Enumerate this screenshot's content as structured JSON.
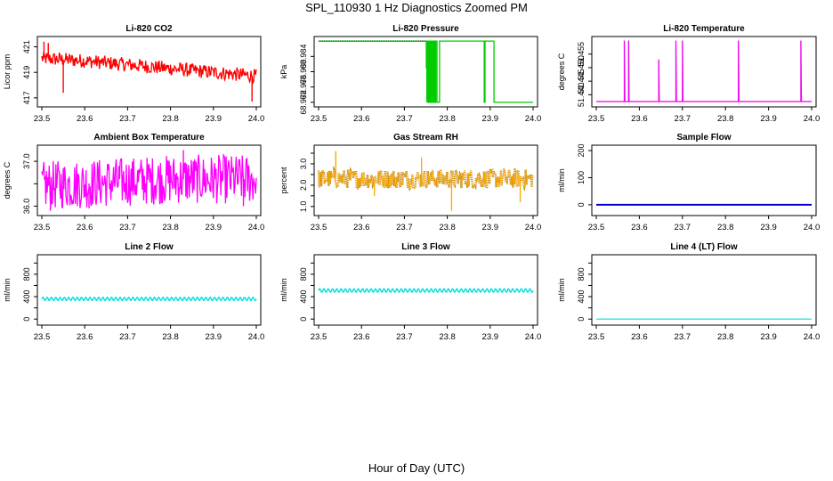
{
  "figure": {
    "title": "SPL_110930  1 Hz Diagnostics Zoomed PM",
    "xlabel": "Hour of Day (UTC)"
  },
  "chart_data": [
    {
      "type": "line",
      "title": "Li-820 CO2",
      "ylabel": "Licor ppm",
      "color": "#ff0000",
      "xlim": [
        23.5,
        24.0
      ],
      "ylim": [
        416.5,
        421.6
      ],
      "xticks": [
        23.5,
        23.6,
        23.7,
        23.8,
        23.9,
        24.0
      ],
      "xtick_labels": [
        "23.5",
        "23.6",
        "23.7",
        "23.8",
        "23.9",
        "24.0"
      ],
      "yticks": [
        417,
        419,
        421
      ],
      "ytick_labels": [
        "417",
        "419",
        "421"
      ],
      "series": [
        {
          "name": "CO2",
          "kind": "noisy",
          "x": [
            23.5,
            23.6,
            23.7,
            23.8,
            23.9,
            24.0
          ],
          "center": [
            420.1,
            419.9,
            419.6,
            419.3,
            419.0,
            418.7
          ],
          "amplitude": 0.55,
          "spikes": [
            [
              23.505,
              421.4
            ],
            [
              23.515,
              421.3
            ],
            [
              23.55,
              417.4
            ],
            [
              23.99,
              416.7
            ]
          ]
        }
      ]
    },
    {
      "type": "line",
      "title": "Li-820 Pressure",
      "ylabel": "kPa",
      "color": "#00cc00",
      "xlim": [
        23.5,
        24.0
      ],
      "ylim": [
        68.9715,
        68.9885
      ],
      "xticks": [
        23.5,
        23.6,
        23.7,
        23.8,
        23.9,
        24.0
      ],
      "xtick_labels": [
        "23.5",
        "23.6",
        "23.7",
        "23.8",
        "23.9",
        "24.0"
      ],
      "yticks": [
        68.972,
        68.976,
        68.98,
        68.984
      ],
      "ytick_labels": [
        "68.972",
        "68.976",
        "68.980",
        "68.984"
      ],
      "series": [
        {
          "name": "Pressure",
          "kind": "step",
          "high": 68.988,
          "low": 68.972,
          "x": [
            23.5,
            23.75,
            23.751,
            23.752,
            23.755,
            23.757,
            23.759,
            23.761,
            23.763,
            23.765,
            23.767,
            23.769,
            23.771,
            23.773,
            23.776,
            23.78,
            23.782,
            23.886,
            23.888,
            23.909,
            23.911,
            24.0
          ],
          "y": [
            68.988,
            68.988,
            68.981,
            68.988,
            68.972,
            68.988,
            68.972,
            68.988,
            68.972,
            68.988,
            68.972,
            68.988,
            68.972,
            68.988,
            68.972,
            68.972,
            68.988,
            68.972,
            68.988,
            68.972,
            68.972,
            68.972
          ]
        }
      ]
    },
    {
      "type": "line",
      "title": "Li-820 Temperature",
      "ylabel": "degrees C",
      "color": "#ee00ee",
      "xlim": [
        23.5,
        24.0
      ],
      "ylim": [
        51.4365,
        51.4605
      ],
      "xticks": [
        23.5,
        23.6,
        23.7,
        23.8,
        23.9,
        24.0
      ],
      "xtick_labels": [
        "23.5",
        "23.6",
        "23.7",
        "23.8",
        "23.9",
        "24.0"
      ],
      "yticks": [
        51.44,
        51.445,
        51.45,
        51.455
      ],
      "ytick_labels": [
        "51.440",
        "51.445",
        "51.450",
        "51.455"
      ],
      "series": [
        {
          "name": "Temperature",
          "kind": "spikes",
          "base": 51.4375,
          "x": [
            23.565,
            23.575,
            23.645,
            23.685,
            23.7,
            23.83,
            23.975
          ],
          "y": [
            51.46,
            51.46,
            51.453,
            51.46,
            51.46,
            51.46,
            51.46
          ]
        }
      ]
    },
    {
      "type": "line",
      "title": "Ambient Box Temperature",
      "ylabel": "degrees C",
      "color": "#ff00ff",
      "xlim": [
        23.5,
        24.0
      ],
      "ylim": [
        35.85,
        37.3
      ],
      "xticks": [
        23.5,
        23.6,
        23.7,
        23.8,
        23.9,
        24.0
      ],
      "xtick_labels": [
        "23.5",
        "23.6",
        "23.7",
        "23.8",
        "23.9",
        "24.0"
      ],
      "yticks": [
        36.0,
        36.5,
        37.0
      ],
      "ytick_labels": [
        "36.0",
        "",
        "37.0"
      ],
      "series": [
        {
          "name": "Box temp",
          "kind": "noisy",
          "x": [
            23.5,
            23.6,
            23.7,
            23.8,
            23.9,
            24.0
          ],
          "center": [
            36.45,
            36.5,
            36.55,
            36.6,
            36.6,
            36.6
          ],
          "amplitude": 0.55,
          "spikes": [
            [
              23.52,
              35.9
            ],
            [
              23.61,
              35.95
            ],
            [
              23.83,
              37.25
            ],
            [
              23.97,
              36.0
            ]
          ]
        }
      ]
    },
    {
      "type": "scatter",
      "title": "Gas Stream RH",
      "ylabel": "percent",
      "color": "#ffaa00",
      "secondary_color": "#996600",
      "xlim": [
        23.5,
        24.0
      ],
      "ylim": [
        0.7,
        3.75
      ],
      "xticks": [
        23.5,
        23.6,
        23.7,
        23.8,
        23.9,
        24.0
      ],
      "xtick_labels": [
        "23.5",
        "23.6",
        "23.7",
        "23.8",
        "23.9",
        "24.0"
      ],
      "yticks": [
        1.0,
        1.5,
        2.0,
        2.5,
        3.0,
        3.5
      ],
      "ytick_labels": [
        "1.0",
        "",
        "2.0",
        "",
        "3.0",
        ""
      ],
      "series": [
        {
          "name": "RH",
          "kind": "noisy",
          "x": [
            23.5,
            23.6,
            23.7,
            23.8,
            23.9,
            24.0
          ],
          "center": [
            2.3,
            2.3,
            2.3,
            2.3,
            2.3,
            2.3
          ],
          "amplitude": 0.45,
          "spikes": [
            [
              23.54,
              3.6
            ],
            [
              23.81,
              0.8
            ],
            [
              23.97,
              1.2
            ],
            [
              23.74,
              3.3
            ],
            [
              23.63,
              1.5
            ]
          ]
        }
      ]
    },
    {
      "type": "line",
      "title": "Sample Flow",
      "ylabel": "ml/min",
      "color": "#0000cc",
      "xlim": [
        23.5,
        24.0
      ],
      "ylim": [
        -30,
        210
      ],
      "xticks": [
        23.5,
        23.6,
        23.7,
        23.8,
        23.9,
        24.0
      ],
      "xtick_labels": [
        "23.5",
        "23.6",
        "23.7",
        "23.8",
        "23.9",
        "24.0"
      ],
      "yticks": [
        0,
        100,
        200
      ],
      "ytick_labels": [
        "0",
        "100",
        "200"
      ],
      "series": [
        {
          "name": "Sample flow",
          "kind": "flat",
          "x": [
            23.5,
            24.0
          ],
          "y": [
            0,
            0
          ]
        }
      ]
    },
    {
      "type": "line",
      "title": "Line 2 Flow",
      "ylabel": "ml/min",
      "color": "#00dddd",
      "xlim": [
        23.5,
        24.0
      ],
      "ylim": [
        -60,
        1100
      ],
      "xticks": [
        23.5,
        23.6,
        23.7,
        23.8,
        23.9,
        24.0
      ],
      "xtick_labels": [
        "23.5",
        "23.6",
        "23.7",
        "23.8",
        "23.9",
        "24.0"
      ],
      "yticks": [
        0,
        200,
        400,
        600,
        800,
        1000
      ],
      "ytick_labels": [
        "0",
        "",
        "400",
        "",
        "800",
        ""
      ],
      "series": [
        {
          "name": "Line 2",
          "kind": "wave",
          "x": [
            23.5,
            24.0
          ],
          "center": 360,
          "amplitude": 28,
          "cycles": 50
        }
      ]
    },
    {
      "type": "line",
      "title": "Line 3 Flow",
      "ylabel": "ml/min",
      "color": "#00dddd",
      "xlim": [
        23.5,
        24.0
      ],
      "ylim": [
        -60,
        1100
      ],
      "xticks": [
        23.5,
        23.6,
        23.7,
        23.8,
        23.9,
        24.0
      ],
      "xtick_labels": [
        "23.5",
        "23.6",
        "23.7",
        "23.8",
        "23.9",
        "24.0"
      ],
      "yticks": [
        0,
        200,
        400,
        600,
        800,
        1000
      ],
      "ytick_labels": [
        "0",
        "",
        "400",
        "",
        "800",
        ""
      ],
      "series": [
        {
          "name": "Line 3",
          "kind": "wave",
          "x": [
            23.5,
            24.0
          ],
          "center": 510,
          "amplitude": 30,
          "cycles": 50
        }
      ]
    },
    {
      "type": "line",
      "title": "Line 4 (LT) Flow",
      "ylabel": "ml/min",
      "color": "#00dddd",
      "xlim": [
        23.5,
        24.0
      ],
      "ylim": [
        -60,
        1100
      ],
      "xticks": [
        23.5,
        23.6,
        23.7,
        23.8,
        23.9,
        24.0
      ],
      "xtick_labels": [
        "23.5",
        "23.6",
        "23.7",
        "23.8",
        "23.9",
        "24.0"
      ],
      "yticks": [
        0,
        200,
        400,
        600,
        800,
        1000
      ],
      "ytick_labels": [
        "0",
        "",
        "400",
        "",
        "800",
        ""
      ],
      "series": [
        {
          "name": "Line 4 (LT)",
          "kind": "flat",
          "x": [
            23.5,
            24.0
          ],
          "y": [
            0,
            0
          ]
        }
      ]
    }
  ]
}
